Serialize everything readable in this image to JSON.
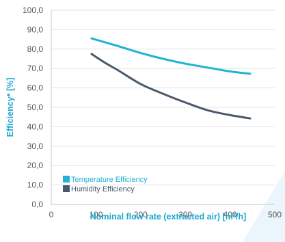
{
  "chart_data": {
    "type": "line",
    "title": "",
    "xlabel": "Nominal flow rate (extracted air) [m³/h]",
    "ylabel": "Efficiency* [%]",
    "xlim": [
      0,
      500
    ],
    "ylim": [
      0,
      100
    ],
    "x_ticks": [
      "0",
      "100",
      "200",
      "300",
      "400",
      "500"
    ],
    "y_ticks": [
      "0,0",
      "10,0",
      "20,0",
      "30,0",
      "40,0",
      "50,0",
      "60,0",
      "70,0",
      "80,0",
      "90,0",
      "100,0"
    ],
    "grid": true,
    "legend_position": "bottom-left",
    "series": [
      {
        "name": "Temperature Efficiency",
        "color": "#21b3d3",
        "x": [
          90,
          150,
          200,
          250,
          300,
          350,
          400,
          445
        ],
        "y": [
          85.5,
          81.5,
          78.0,
          75.0,
          72.5,
          70.5,
          68.5,
          67.3
        ]
      },
      {
        "name": "Humidity Efficiency",
        "color": "#4a5a6c",
        "x": [
          90,
          120,
          150,
          200,
          250,
          300,
          350,
          400,
          445
        ],
        "y": [
          77.5,
          73.0,
          69.0,
          62.0,
          57.0,
          52.5,
          48.5,
          46.0,
          44.3
        ]
      }
    ]
  }
}
